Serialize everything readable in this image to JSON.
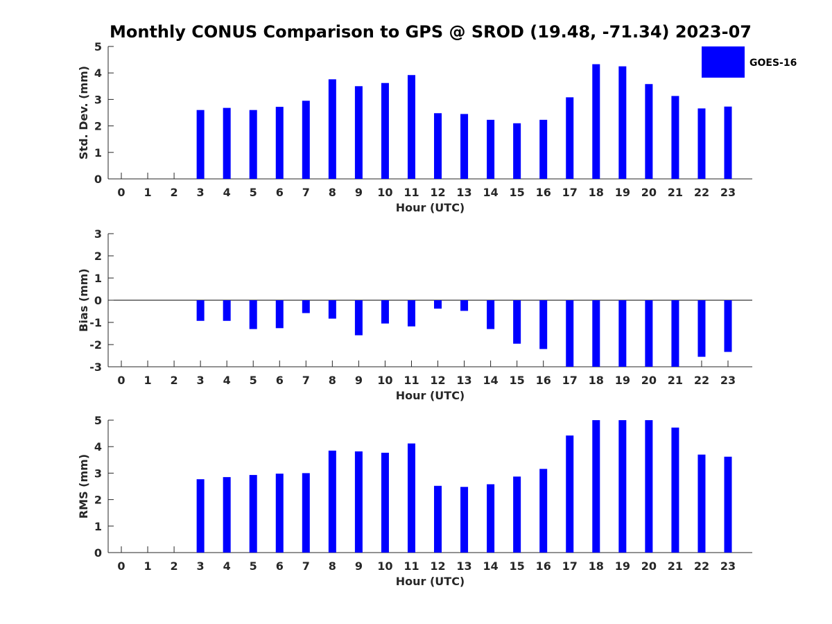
{
  "chart_data": {
    "title": "Monthly CONUS Comparison to GPS @ SROD (19.48, -71.34) 2023-07",
    "legend": {
      "label": "GOES-16",
      "color": "#0000ff",
      "placement": "top-right"
    },
    "bar_color": "#0000ff",
    "panels": [
      {
        "type": "bar",
        "name": "stddev",
        "ylabel": "Std. Dev. (mm)",
        "xlabel": "Hour (UTC)",
        "ylim": [
          0,
          5
        ],
        "yticks": [
          0,
          1,
          2,
          3,
          4,
          5
        ],
        "categories": [
          "0",
          "1",
          "2",
          "3",
          "4",
          "5",
          "6",
          "7",
          "8",
          "9",
          "10",
          "11",
          "12",
          "13",
          "14",
          "15",
          "16",
          "17",
          "18",
          "19",
          "20",
          "21",
          "22",
          "23"
        ],
        "values": [
          null,
          null,
          null,
          2.6,
          2.68,
          2.6,
          2.72,
          2.95,
          3.76,
          3.5,
          3.62,
          3.92,
          2.48,
          2.45,
          2.23,
          2.1,
          2.23,
          3.08,
          4.33,
          4.25,
          3.58,
          3.13,
          2.66,
          2.73
        ]
      },
      {
        "type": "bar",
        "name": "bias",
        "ylabel": "Bias (mm)",
        "xlabel": "Hour (UTC)",
        "ylim": [
          -3,
          3
        ],
        "yticks": [
          -3,
          -2,
          -1,
          0,
          1,
          2,
          3
        ],
        "categories": [
          "0",
          "1",
          "2",
          "3",
          "4",
          "5",
          "6",
          "7",
          "8",
          "9",
          "10",
          "11",
          "12",
          "13",
          "14",
          "15",
          "16",
          "17",
          "18",
          "19",
          "20",
          "21",
          "22",
          "23"
        ],
        "values": [
          null,
          null,
          null,
          -0.93,
          -0.93,
          -1.3,
          -1.26,
          -0.58,
          -0.83,
          -1.58,
          -1.05,
          -1.18,
          -0.38,
          -0.48,
          -1.3,
          -1.96,
          -2.2,
          -3.0,
          -3.0,
          -3.0,
          -3.0,
          -3.0,
          -2.55,
          -2.33
        ]
      },
      {
        "type": "bar",
        "name": "rms",
        "ylabel": "RMS (mm)",
        "xlabel": "Hour (UTC)",
        "ylim": [
          0,
          5
        ],
        "yticks": [
          0,
          1,
          2,
          3,
          4,
          5
        ],
        "categories": [
          "0",
          "1",
          "2",
          "3",
          "4",
          "5",
          "6",
          "7",
          "8",
          "9",
          "10",
          "11",
          "12",
          "13",
          "14",
          "15",
          "16",
          "17",
          "18",
          "19",
          "20",
          "21",
          "22",
          "23"
        ],
        "values": [
          null,
          null,
          null,
          2.77,
          2.85,
          2.93,
          2.98,
          3.0,
          3.85,
          3.82,
          3.77,
          4.12,
          2.52,
          2.48,
          2.58,
          2.87,
          3.16,
          4.42,
          5.0,
          5.0,
          5.0,
          4.72,
          3.7,
          3.62
        ]
      }
    ]
  }
}
